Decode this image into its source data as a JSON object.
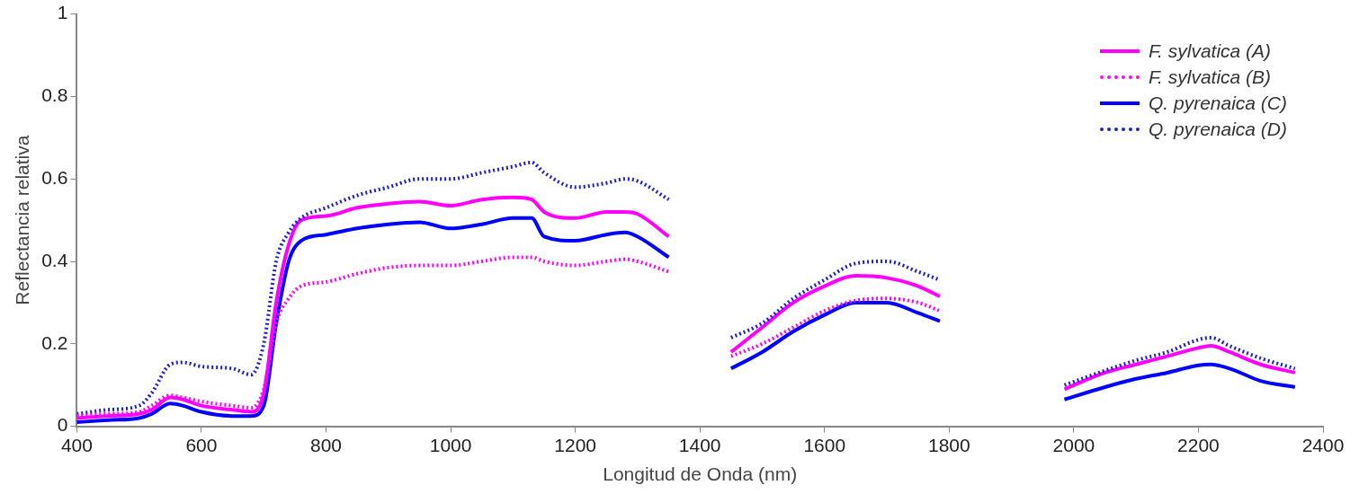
{
  "chart_data": {
    "type": "line",
    "xlabel": "Longitud de Onda (nm)",
    "ylabel": "Reflectancia relativa",
    "x": [
      400,
      450,
      500,
      520,
      550,
      570,
      600,
      650,
      680,
      700,
      720,
      740,
      760,
      800,
      850,
      900,
      950,
      1000,
      1050,
      1100,
      1130,
      1150,
      1200,
      1250,
      1280,
      1300,
      1350,
      1400,
      1450,
      1500,
      1550,
      1600,
      1650,
      1700,
      1750,
      1785,
      1900,
      1985,
      2050,
      2100,
      2150,
      2200,
      2220,
      2250,
      2300,
      2355
    ],
    "xlim": [
      400,
      2400
    ],
    "xticks": [
      400,
      600,
      800,
      1000,
      1200,
      1400,
      1600,
      1800,
      2000,
      2200,
      2400
    ],
    "ylim": [
      0,
      1
    ],
    "yticks": [
      0,
      0.2,
      0.4,
      0.6,
      0.8,
      1
    ],
    "grid": false,
    "legend": "top right",
    "marker": "none",
    "series": [
      {
        "name": "F. sylvatica (A)",
        "color": "#ff00ff",
        "line_style": "solid",
        "values": [
          0.02,
          0.025,
          0.03,
          0.04,
          0.07,
          0.065,
          0.05,
          0.04,
          0.035,
          0.08,
          0.3,
          0.44,
          0.5,
          0.51,
          0.53,
          0.54,
          0.545,
          0.535,
          0.55,
          0.555,
          0.55,
          0.52,
          0.505,
          0.52,
          0.52,
          0.515,
          0.46,
          null,
          0.18,
          0.24,
          0.3,
          0.34,
          0.365,
          0.36,
          0.34,
          0.315,
          null,
          0.09,
          0.13,
          0.15,
          0.17,
          0.19,
          0.195,
          0.18,
          0.15,
          0.13
        ]
      },
      {
        "name": "F. sylvatica (B)",
        "color": "#ff00ff",
        "line_style": "dotted",
        "values": [
          0.025,
          0.03,
          0.035,
          0.05,
          0.075,
          0.07,
          0.06,
          0.05,
          0.045,
          0.09,
          0.25,
          0.31,
          0.34,
          0.35,
          0.37,
          0.385,
          0.39,
          0.39,
          0.4,
          0.41,
          0.41,
          0.4,
          0.39,
          0.4,
          0.405,
          0.4,
          0.375,
          null,
          0.17,
          0.2,
          0.24,
          0.28,
          0.305,
          0.31,
          0.3,
          0.28,
          null,
          null,
          null,
          null,
          null,
          null,
          null,
          null,
          null,
          null
        ]
      },
      {
        "name": "Q. pyrenaica (C)",
        "color": "#0000ff",
        "line_style": "solid",
        "values": [
          0.01,
          0.015,
          0.02,
          0.03,
          0.055,
          0.05,
          0.035,
          0.025,
          0.025,
          0.05,
          0.25,
          0.4,
          0.45,
          0.465,
          0.48,
          0.49,
          0.495,
          0.48,
          0.49,
          0.505,
          0.505,
          0.46,
          0.45,
          0.465,
          0.47,
          0.46,
          0.41,
          null,
          0.14,
          0.18,
          0.23,
          0.27,
          0.3,
          0.3,
          0.275,
          0.255,
          null,
          0.065,
          0.095,
          0.115,
          0.13,
          0.148,
          0.15,
          0.14,
          0.11,
          0.095
        ]
      },
      {
        "name": "Q. pyrenaica (D)",
        "color": "#1f1fd0",
        "line_style": "dotted",
        "values": [
          0.03,
          0.04,
          0.05,
          0.08,
          0.15,
          0.155,
          0.145,
          0.14,
          0.125,
          0.2,
          0.4,
          0.47,
          0.505,
          0.53,
          0.56,
          0.58,
          0.6,
          0.6,
          0.615,
          0.63,
          0.64,
          0.615,
          0.58,
          0.59,
          0.6,
          0.595,
          0.55,
          null,
          0.215,
          0.25,
          0.31,
          0.355,
          0.395,
          0.4,
          0.375,
          0.355,
          null,
          0.1,
          0.135,
          0.16,
          0.18,
          0.21,
          0.215,
          0.195,
          0.165,
          0.14
        ]
      }
    ]
  }
}
